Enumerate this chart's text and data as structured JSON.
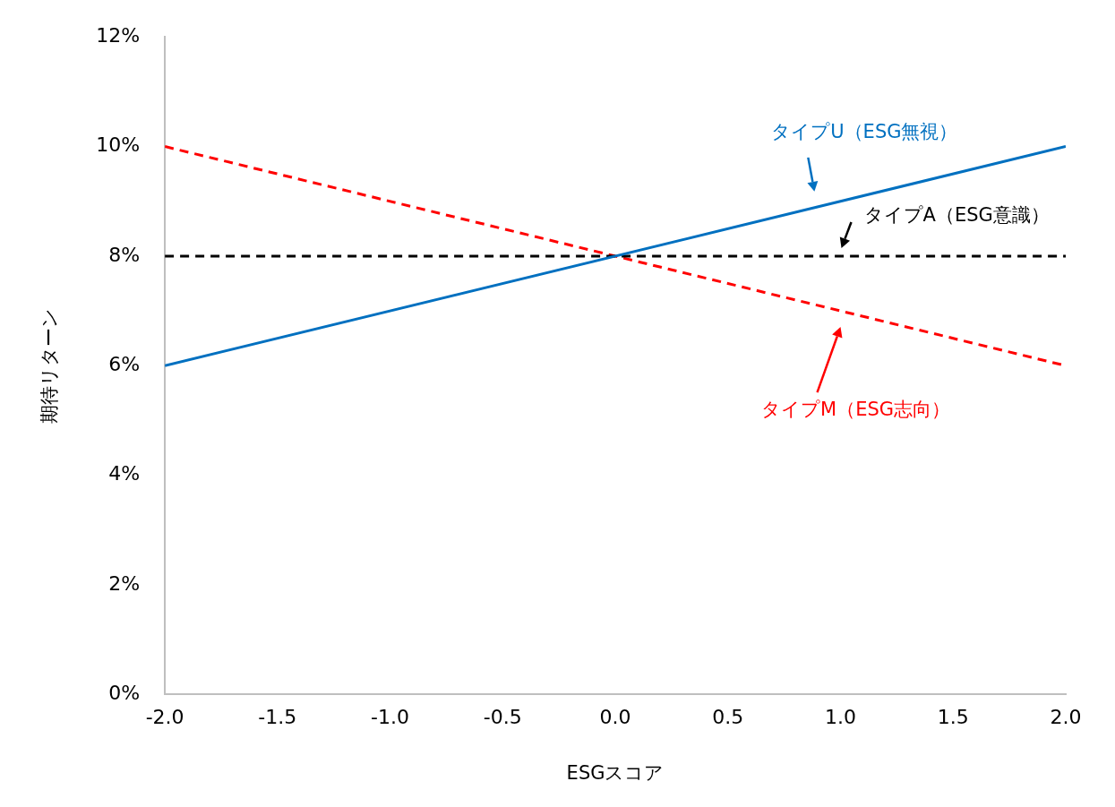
{
  "chart_data": {
    "type": "line",
    "xlabel": "ESGスコア",
    "ylabel": "期待リターン",
    "x": [
      -2,
      2
    ],
    "xlim": [
      -2,
      2
    ],
    "xticks": [
      {
        "value": -2,
        "label": "-2.0"
      },
      {
        "value": -1.5,
        "label": "-1.5"
      },
      {
        "value": -1,
        "label": "-1.0"
      },
      {
        "value": -0.5,
        "label": "-0.5"
      },
      {
        "value": 0,
        "label": "0.0"
      },
      {
        "value": 0.5,
        "label": "0.5"
      },
      {
        "value": 1,
        "label": "1.0"
      },
      {
        "value": 1.5,
        "label": "1.5"
      },
      {
        "value": 2,
        "label": "2.0"
      }
    ],
    "ylim": [
      0,
      12
    ],
    "yticks": [
      {
        "value": 0,
        "label": "0%"
      },
      {
        "value": 2,
        "label": "2%"
      },
      {
        "value": 4,
        "label": "4%"
      },
      {
        "value": 6,
        "label": "6%"
      },
      {
        "value": 8,
        "label": "8%"
      },
      {
        "value": 10,
        "label": "10%"
      },
      {
        "value": 12,
        "label": "12%"
      }
    ],
    "series": [
      {
        "name": "タイプU（ESG無視）",
        "color": "#0070c0",
        "values": [
          6,
          10
        ],
        "line_style": "solid"
      },
      {
        "name": "タイプA（ESG意識）",
        "color": "#000000",
        "values": [
          8,
          8
        ],
        "line_style": "dashed"
      },
      {
        "name": "タイプM（ESG志向）",
        "color": "#ff0000",
        "values": [
          10,
          6
        ],
        "line_style": "dashed"
      }
    ],
    "grid": false,
    "legend": false,
    "marker": "none"
  }
}
